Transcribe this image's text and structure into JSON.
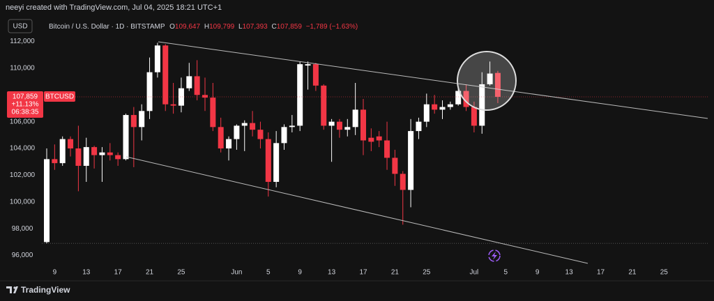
{
  "header": {
    "credit": "neeyi created with TradingView.com, Jul 04, 2025 18:21 UTC+1",
    "currency": "USD",
    "ohlc": [
      {
        "key": "O",
        "value": "109,647"
      },
      {
        "key": "H",
        "value": "109,799"
      },
      {
        "key": "L",
        "value": "107,393"
      },
      {
        "key": "C",
        "value": "107,859"
      }
    ],
    "change": "−1,789 (−1.63%)"
  },
  "price_label": {
    "price": "107,859",
    "ticker": "BTCUSD",
    "change": "+11.13%",
    "countdown": "06:38:35"
  },
  "footer": {
    "brand": "TradingView"
  },
  "chart_data": {
    "type": "candlestick",
    "categories": [
      null,
      "9",
      null,
      null,
      null,
      "13",
      null,
      null,
      null,
      "17",
      null,
      null,
      null,
      "21",
      null,
      null,
      null,
      "25",
      null,
      null,
      null,
      null,
      null,
      null,
      "Jun",
      null,
      null,
      null,
      "5",
      null,
      null,
      null,
      "9",
      null,
      null,
      null,
      "13",
      null,
      null,
      null,
      "17",
      null,
      null,
      null,
      "21",
      null,
      null,
      null,
      "25",
      null,
      null,
      null,
      null,
      null,
      "Jul",
      null,
      null,
      null,
      "5",
      null,
      null,
      null,
      "9",
      null,
      null,
      null,
      "13",
      null,
      null,
      null,
      "17",
      null,
      null,
      null,
      "21",
      null,
      null,
      null,
      "25",
      null,
      null
    ],
    "series": [
      {
        "name": "Bitcoin / U.S. Dollar · 1D · BITSTAMP",
        "up_color": "#ffffff",
        "down_color": "#f23645",
        "open": [
          97000,
          103200,
          102900,
          104700,
          104000,
          102700,
          104100,
          103500,
          103700,
          103500,
          103200,
          106500,
          105600,
          106800,
          109700,
          111700,
          107300,
          107200,
          108500,
          109400,
          108000,
          107800,
          105600,
          104000,
          104700,
          105700,
          105900,
          105400,
          104700,
          101500,
          104400,
          105600,
          105700,
          110200,
          110300,
          108700,
          105700,
          106000,
          105400,
          105600,
          106900,
          104800,
          104900,
          104600,
          103300,
          102100,
          100900,
          105300,
          106000,
          107300,
          106900,
          107100,
          107300,
          108300,
          107100,
          105700,
          108800,
          109647,
          null,
          null,
          null,
          null,
          null,
          null,
          null,
          null,
          null,
          null,
          null,
          null,
          null,
          null,
          null,
          null,
          null,
          null,
          null,
          null,
          null,
          null,
          null
        ],
        "high": [
          104000,
          104300,
          104900,
          104900,
          105700,
          104800,
          104200,
          104100,
          104400,
          103700,
          106600,
          107100,
          107300,
          110800,
          111900,
          111800,
          108900,
          109300,
          110400,
          110600,
          109300,
          108900,
          106300,
          104900,
          105800,
          106100,
          106800,
          106000,
          105200,
          105300,
          105800,
          106500,
          110500,
          110500,
          110400,
          108800,
          106200,
          106200,
          106200,
          108900,
          107700,
          105500,
          105300,
          106000,
          103900,
          102300,
          106200,
          106300,
          108100,
          108000,
          107600,
          107500,
          108500,
          108800,
          107500,
          109700,
          110500,
          109799,
          null,
          null,
          null,
          null,
          null,
          null,
          null,
          null,
          null,
          null,
          null,
          null,
          null,
          null,
          null,
          null,
          null,
          null,
          null,
          null,
          null,
          null,
          null
        ],
        "low": [
          96900,
          102400,
          102700,
          103400,
          100800,
          101500,
          102500,
          101500,
          103100,
          102700,
          103100,
          102600,
          104600,
          106200,
          109300,
          106800,
          106600,
          106700,
          108300,
          107600,
          106800,
          105300,
          103700,
          103100,
          103900,
          103800,
          104900,
          104000,
          100400,
          101100,
          103900,
          105200,
          105300,
          108400,
          108300,
          105400,
          103000,
          104800,
          104900,
          105000,
          103500,
          103800,
          104100,
          102400,
          101200,
          98300,
          99600,
          104700,
          105600,
          106600,
          106200,
          106900,
          107200,
          106800,
          105200,
          105100,
          108700,
          107393,
          null,
          null,
          null,
          null,
          null,
          null,
          null,
          null,
          null,
          null,
          null,
          null,
          null,
          null,
          null,
          null,
          null,
          null,
          null,
          null,
          null,
          null,
          null
        ],
        "close": [
          103200,
          102900,
          104700,
          104000,
          102700,
          104100,
          103500,
          103700,
          103500,
          103200,
          106500,
          105600,
          106800,
          109700,
          111700,
          107300,
          107200,
          108500,
          109400,
          108000,
          107800,
          105600,
          104000,
          104700,
          105700,
          105900,
          105400,
          104700,
          101500,
          104400,
          105600,
          105700,
          110300,
          110300,
          108700,
          105700,
          106000,
          105400,
          105600,
          106900,
          104600,
          104500,
          104600,
          103300,
          102100,
          100900,
          105300,
          106000,
          107300,
          106900,
          107100,
          107300,
          108300,
          107100,
          105700,
          108800,
          109600,
          107859,
          null,
          null,
          null,
          null,
          null,
          null,
          null,
          null,
          null,
          null,
          null,
          null,
          null,
          null,
          null,
          null,
          null,
          null,
          null,
          null,
          null,
          null,
          null
        ]
      }
    ],
    "ylim": [
      95300,
      112600
    ],
    "yticks": [
      {
        "value": 96000,
        "label": "96,000"
      },
      {
        "value": 98000,
        "label": "98,000"
      },
      {
        "value": 100000,
        "label": "100,000"
      },
      {
        "value": 102000,
        "label": "102,000"
      },
      {
        "value": 104000,
        "label": "104,000"
      },
      {
        "value": 106000,
        "label": "106,000"
      },
      {
        "value": 108000,
        "label": "108,000"
      },
      {
        "value": 110000,
        "label": "110,000"
      },
      {
        "value": 112000,
        "label": "112,000"
      }
    ],
    "grid": false
  }
}
